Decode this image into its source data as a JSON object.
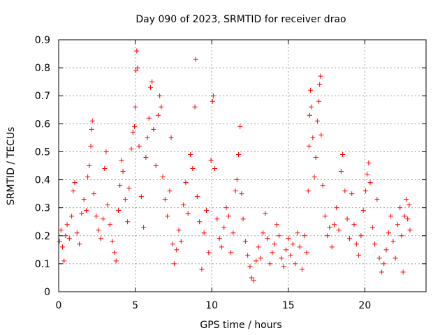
{
  "chart_data": {
    "type": "scatter",
    "title": "Day 090 of 2023, SRMTID for receiver drao",
    "xlabel": "GPS time / hours",
    "ylabel": "SRMTID / TECUs",
    "xlim": [
      0,
      24
    ],
    "ylim": [
      0,
      0.9
    ],
    "xticks": [
      0,
      5,
      10,
      15,
      20
    ],
    "xtick_labels": [
      "0",
      "5",
      "10",
      "15",
      "20"
    ],
    "yticks": [
      0,
      0.1,
      0.2,
      0.3,
      0.4,
      0.5,
      0.6,
      0.7,
      0.8,
      0.9
    ],
    "ytick_labels": [
      "0",
      "0.1",
      "0.2",
      "0.3",
      "0.4",
      "0.5",
      "0.6",
      "0.7",
      "0.8",
      "0.9"
    ],
    "grid": true,
    "marker": "+",
    "marker_color": "#ff0000",
    "series": [
      {
        "name": "SRMTID",
        "points": [
          [
            0.05,
            0.18
          ],
          [
            0.15,
            0.22
          ],
          [
            0.25,
            0.16
          ],
          [
            0.35,
            0.11
          ],
          [
            0.45,
            0.2
          ],
          [
            0.55,
            0.24
          ],
          [
            0.7,
            0.19
          ],
          [
            0.85,
            0.27
          ],
          [
            0.95,
            0.36
          ],
          [
            1.05,
            0.39
          ],
          [
            1.2,
            0.21
          ],
          [
            1.35,
            0.17
          ],
          [
            1.5,
            0.28
          ],
          [
            1.65,
            0.33
          ],
          [
            1.8,
            0.29
          ],
          [
            1.9,
            0.41
          ],
          [
            2.0,
            0.45
          ],
          [
            2.1,
            0.52
          ],
          [
            2.15,
            0.58
          ],
          [
            2.2,
            0.61
          ],
          [
            2.3,
            0.35
          ],
          [
            2.45,
            0.27
          ],
          [
            2.6,
            0.22
          ],
          [
            2.75,
            0.19
          ],
          [
            2.9,
            0.26
          ],
          [
            3.0,
            0.44
          ],
          [
            3.1,
            0.5
          ],
          [
            3.2,
            0.31
          ],
          [
            3.35,
            0.24
          ],
          [
            3.5,
            0.18
          ],
          [
            3.65,
            0.14
          ],
          [
            3.75,
            0.11
          ],
          [
            3.9,
            0.29
          ],
          [
            4.0,
            0.38
          ],
          [
            4.1,
            0.47
          ],
          [
            4.2,
            0.43
          ],
          [
            4.35,
            0.33
          ],
          [
            4.5,
            0.25
          ],
          [
            4.6,
            0.37
          ],
          [
            4.75,
            0.51
          ],
          [
            4.85,
            0.57
          ],
          [
            4.95,
            0.59
          ],
          [
            5.0,
            0.66
          ],
          [
            5.05,
            0.79
          ],
          [
            5.1,
            0.86
          ],
          [
            5.15,
            0.8
          ],
          [
            5.25,
            0.52
          ],
          [
            5.4,
            0.34
          ],
          [
            5.55,
            0.23
          ],
          [
            5.7,
            0.48
          ],
          [
            5.8,
            0.55
          ],
          [
            5.9,
            0.62
          ],
          [
            6.0,
            0.73
          ],
          [
            6.1,
            0.75
          ],
          [
            6.2,
            0.58
          ],
          [
            6.35,
            0.45
          ],
          [
            6.5,
            0.63
          ],
          [
            6.6,
            0.7
          ],
          [
            6.7,
            0.66
          ],
          [
            6.8,
            0.41
          ],
          [
            6.95,
            0.33
          ],
          [
            7.1,
            0.27
          ],
          [
            7.25,
            0.36
          ],
          [
            7.35,
            0.55
          ],
          [
            7.45,
            0.17
          ],
          [
            7.55,
            0.1
          ],
          [
            7.7,
            0.15
          ],
          [
            7.85,
            0.22
          ],
          [
            8.0,
            0.18
          ],
          [
            8.15,
            0.31
          ],
          [
            8.3,
            0.39
          ],
          [
            8.45,
            0.28
          ],
          [
            8.6,
            0.49
          ],
          [
            8.75,
            0.44
          ],
          [
            8.9,
            0.66
          ],
          [
            8.95,
            0.83
          ],
          [
            9.05,
            0.34
          ],
          [
            9.2,
            0.25
          ],
          [
            9.35,
            0.08
          ],
          [
            9.5,
            0.21
          ],
          [
            9.65,
            0.29
          ],
          [
            9.8,
            0.14
          ],
          [
            9.95,
            0.47
          ],
          [
            10.05,
            0.68
          ],
          [
            10.1,
            0.7
          ],
          [
            10.2,
            0.44
          ],
          [
            10.35,
            0.26
          ],
          [
            10.5,
            0.19
          ],
          [
            10.65,
            0.16
          ],
          [
            10.8,
            0.23
          ],
          [
            10.95,
            0.3
          ],
          [
            11.1,
            0.27
          ],
          [
            11.25,
            0.14
          ],
          [
            11.4,
            0.21
          ],
          [
            11.55,
            0.36
          ],
          [
            11.65,
            0.4
          ],
          [
            11.75,
            0.49
          ],
          [
            11.85,
            0.59
          ],
          [
            11.95,
            0.35
          ],
          [
            12.05,
            0.26
          ],
          [
            12.2,
            0.18
          ],
          [
            12.35,
            0.13
          ],
          [
            12.5,
            0.09
          ],
          [
            12.6,
            0.05
          ],
          [
            12.75,
            0.04
          ],
          [
            12.9,
            0.11
          ],
          [
            13.05,
            0.16
          ],
          [
            13.2,
            0.12
          ],
          [
            13.35,
            0.21
          ],
          [
            13.5,
            0.28
          ],
          [
            13.65,
            0.19
          ],
          [
            13.8,
            0.1
          ],
          [
            13.95,
            0.14
          ],
          [
            14.1,
            0.17
          ],
          [
            14.25,
            0.24
          ],
          [
            14.4,
            0.2
          ],
          [
            14.55,
            0.12
          ],
          [
            14.7,
            0.09
          ],
          [
            14.85,
            0.15
          ],
          [
            15.0,
            0.19
          ],
          [
            15.15,
            0.13
          ],
          [
            15.3,
            0.17
          ],
          [
            15.45,
            0.1
          ],
          [
            15.6,
            0.21
          ],
          [
            15.75,
            0.16
          ],
          [
            15.9,
            0.08
          ],
          [
            16.05,
            0.2
          ],
          [
            16.2,
            0.14
          ],
          [
            16.3,
            0.36
          ],
          [
            16.35,
            0.52
          ],
          [
            16.4,
            0.63
          ],
          [
            16.45,
            0.72
          ],
          [
            16.5,
            0.66
          ],
          [
            16.6,
            0.55
          ],
          [
            16.7,
            0.41
          ],
          [
            16.8,
            0.48
          ],
          [
            16.9,
            0.61
          ],
          [
            17.0,
            0.68
          ],
          [
            17.05,
            0.74
          ],
          [
            17.1,
            0.77
          ],
          [
            17.15,
            0.56
          ],
          [
            17.25,
            0.38
          ],
          [
            17.4,
            0.27
          ],
          [
            17.55,
            0.2
          ],
          [
            17.7,
            0.23
          ],
          [
            17.85,
            0.16
          ],
          [
            18.0,
            0.24
          ],
          [
            18.15,
            0.3
          ],
          [
            18.3,
            0.22
          ],
          [
            18.45,
            0.43
          ],
          [
            18.55,
            0.49
          ],
          [
            18.7,
            0.36
          ],
          [
            18.85,
            0.26
          ],
          [
            19.0,
            0.19
          ],
          [
            19.15,
            0.35
          ],
          [
            19.3,
            0.24
          ],
          [
            19.45,
            0.17
          ],
          [
            19.6,
            0.13
          ],
          [
            19.75,
            0.2
          ],
          [
            19.9,
            0.29
          ],
          [
            20.05,
            0.36
          ],
          [
            20.15,
            0.42
          ],
          [
            20.25,
            0.46
          ],
          [
            20.35,
            0.39
          ],
          [
            20.5,
            0.23
          ],
          [
            20.65,
            0.17
          ],
          [
            20.8,
            0.33
          ],
          [
            20.95,
            0.12
          ],
          [
            21.1,
            0.07
          ],
          [
            21.25,
            0.1
          ],
          [
            21.4,
            0.15
          ],
          [
            21.55,
            0.21
          ],
          [
            21.7,
            0.27
          ],
          [
            21.85,
            0.18
          ],
          [
            22.0,
            0.12
          ],
          [
            22.15,
            0.24
          ],
          [
            22.3,
            0.3
          ],
          [
            22.4,
            0.2
          ],
          [
            22.5,
            0.07
          ],
          [
            22.6,
            0.27
          ],
          [
            22.7,
            0.33
          ],
          [
            22.8,
            0.26
          ],
          [
            22.9,
            0.31
          ],
          [
            22.95,
            0.22
          ]
        ]
      }
    ]
  }
}
